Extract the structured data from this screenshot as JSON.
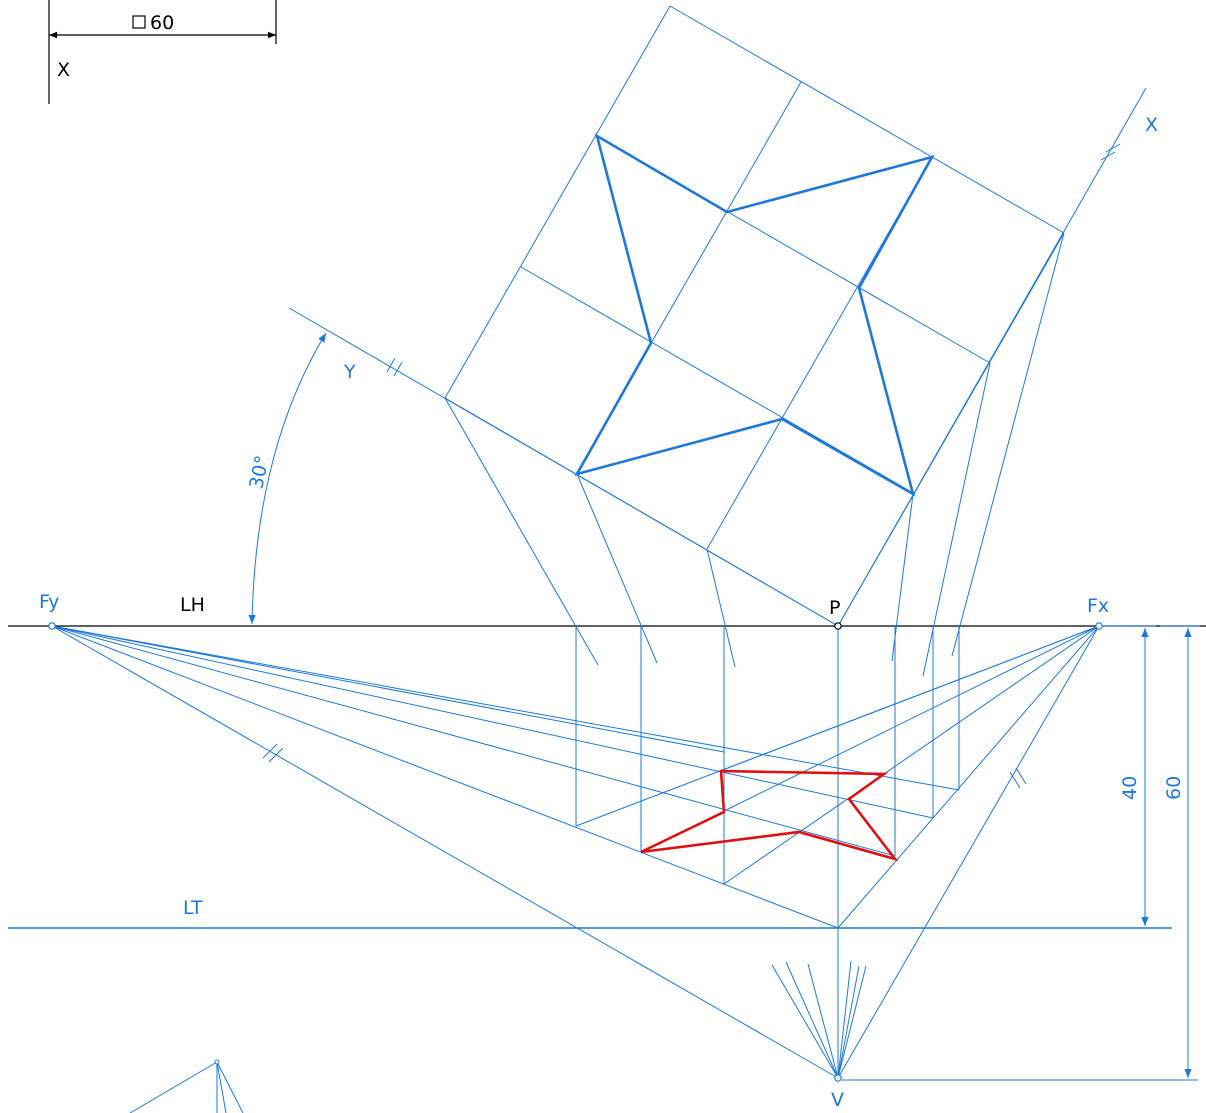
{
  "legend": {
    "square_symbol": "□",
    "dimension": "60",
    "axis": "X"
  },
  "labels": {
    "horizon_line": "LH",
    "ground_line": "LT",
    "vanishing_y": "Fy",
    "vanishing_x": "Fx",
    "principal_point": "P",
    "viewpoint": "V",
    "axis_x": "X",
    "axis_y": "Y",
    "angle": "30°",
    "height_40": "40",
    "height_60": "60"
  },
  "colors": {
    "construction": "#1e78dc",
    "result": "#e01010",
    "horizon": "#000000"
  }
}
